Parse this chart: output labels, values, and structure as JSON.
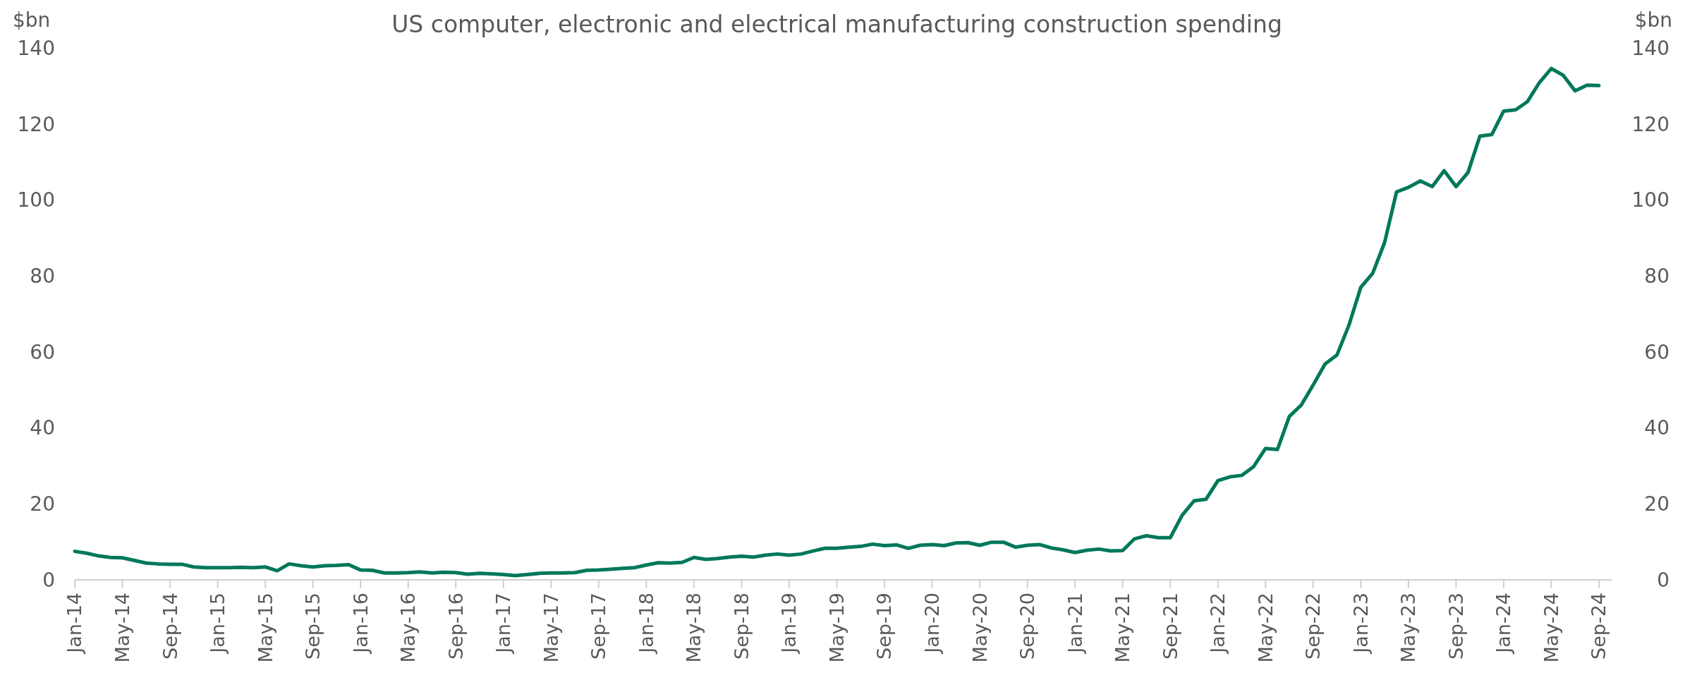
{
  "chart_data": {
    "type": "line",
    "title": "US computer, electronic and electrical manufacturing construction spending",
    "ylabel": "$bn",
    "y2label": "$bn",
    "categories": [
      "Jan-14",
      null,
      null,
      null,
      "May-14",
      null,
      null,
      null,
      "Sep-14",
      null,
      null,
      null,
      "Jan-15",
      null,
      null,
      null,
      "May-15",
      null,
      null,
      null,
      "Sep-15",
      null,
      null,
      null,
      "Jan-16",
      null,
      null,
      null,
      "May-16",
      null,
      null,
      null,
      "Sep-16",
      null,
      null,
      null,
      "Jan-17",
      null,
      null,
      null,
      "May-17",
      null,
      null,
      null,
      "Sep-17",
      null,
      null,
      null,
      "Jan-18",
      null,
      null,
      null,
      "May-18",
      null,
      null,
      null,
      "Sep-18",
      null,
      null,
      null,
      "Jan-19",
      null,
      null,
      null,
      "May-19",
      null,
      null,
      null,
      "Sep-19",
      null,
      null,
      null,
      "Jan-20",
      null,
      null,
      null,
      "May-20",
      null,
      null,
      null,
      "Sep-20",
      null,
      null,
      null,
      "Jan-21",
      null,
      null,
      null,
      "May-21",
      null,
      null,
      null,
      "Sep-21",
      null,
      null,
      null,
      "Jan-22",
      null,
      null,
      null,
      "May-22",
      null,
      null,
      null,
      "Sep-22",
      null,
      null,
      null,
      "Jan-23",
      null,
      null,
      null,
      "May-23",
      null,
      null,
      null,
      "Sep-23",
      null,
      null,
      null,
      "Jan-24",
      null,
      null,
      null,
      "May-24",
      null,
      null,
      null,
      "Sep-24"
    ],
    "series": [
      {
        "color": "#00785a",
        "values": [
          7.5,
          7.0,
          6.3,
          5.9,
          5.8,
          5.1,
          4.4,
          4.2,
          4.1,
          4.1,
          3.4,
          3.2,
          3.2,
          3.2,
          3.3,
          3.2,
          3.4,
          2.4,
          4.2,
          3.7,
          3.4,
          3.7,
          3.8,
          4.0,
          2.6,
          2.5,
          1.8,
          1.8,
          1.9,
          2.1,
          1.8,
          2.0,
          1.9,
          1.5,
          1.7,
          1.6,
          1.4,
          1.1,
          1.4,
          1.7,
          1.8,
          1.8,
          1.9,
          2.5,
          2.6,
          2.8,
          3.0,
          3.2,
          3.9,
          4.5,
          4.4,
          4.6,
          5.9,
          5.4,
          5.6,
          6.0,
          6.2,
          6.0,
          6.5,
          6.8,
          6.5,
          6.8,
          7.6,
          8.3,
          8.3,
          8.6,
          8.8,
          9.4,
          9.0,
          9.2,
          8.3,
          9.1,
          9.3,
          9.0,
          9.7,
          9.8,
          9.1,
          9.9,
          9.9,
          8.6,
          9.1,
          9.3,
          8.4,
          7.9,
          7.2,
          7.8,
          8.1,
          7.6,
          7.7,
          10.8,
          11.6,
          11.1,
          11.1,
          17.0,
          20.8,
          21.2,
          26.1,
          27.1,
          27.5,
          29.8,
          34.6,
          34.3,
          43.0,
          46.0,
          51.3,
          56.8,
          59.2,
          67.0,
          77.0,
          80.7,
          88.8,
          102.1,
          103.3,
          105.0,
          103.5,
          107.7,
          103.5,
          107.2,
          116.8,
          117.2,
          123.4,
          123.7,
          125.9,
          130.9,
          134.6,
          132.8,
          128.7,
          130.2,
          130.1
        ]
      }
    ],
    "ylim": [
      0,
      140
    ],
    "yticks": [
      0,
      20,
      40,
      60,
      80,
      100,
      120,
      140
    ],
    "y2lim": [
      0,
      140
    ],
    "y2ticks": [
      0,
      20,
      40,
      60,
      80,
      100,
      120,
      140
    ],
    "grid": false,
    "marker": "none",
    "line_style": "solid"
  }
}
